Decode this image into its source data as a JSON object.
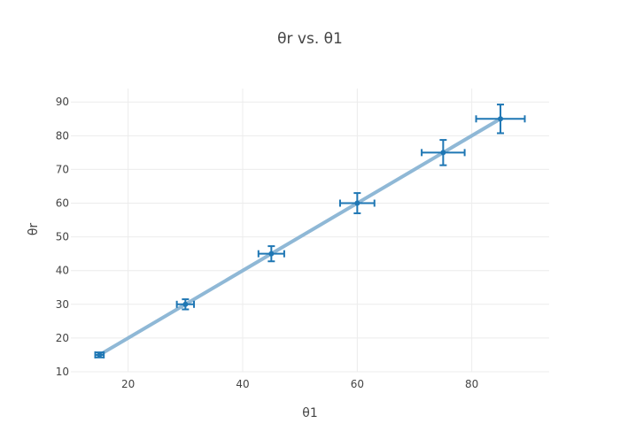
{
  "chart_data": {
    "type": "scatter",
    "title": "θr vs. θ1",
    "xlabel": "θ1",
    "ylabel": "θr",
    "xlim": [
      10,
      93.5
    ],
    "ylim": [
      10,
      94
    ],
    "xticks": [
      20,
      40,
      60,
      80
    ],
    "yticks": [
      10,
      20,
      30,
      40,
      50,
      60,
      70,
      80,
      90
    ],
    "grid": true,
    "series": [
      {
        "mode": "markers",
        "color": "#1f77b4",
        "x": [
          15,
          30,
          45,
          60,
          75,
          85
        ],
        "y": [
          15,
          30,
          45,
          60,
          75,
          85
        ],
        "x_error": [
          0.75,
          1.5,
          2.25,
          3,
          3.75,
          4.25
        ],
        "y_error": [
          0.75,
          1.5,
          2.25,
          3,
          3.75,
          4.25
        ]
      },
      {
        "mode": "lines",
        "color": "#8fb8d6",
        "x": [
          15,
          85
        ],
        "y": [
          15,
          85
        ]
      }
    ]
  }
}
